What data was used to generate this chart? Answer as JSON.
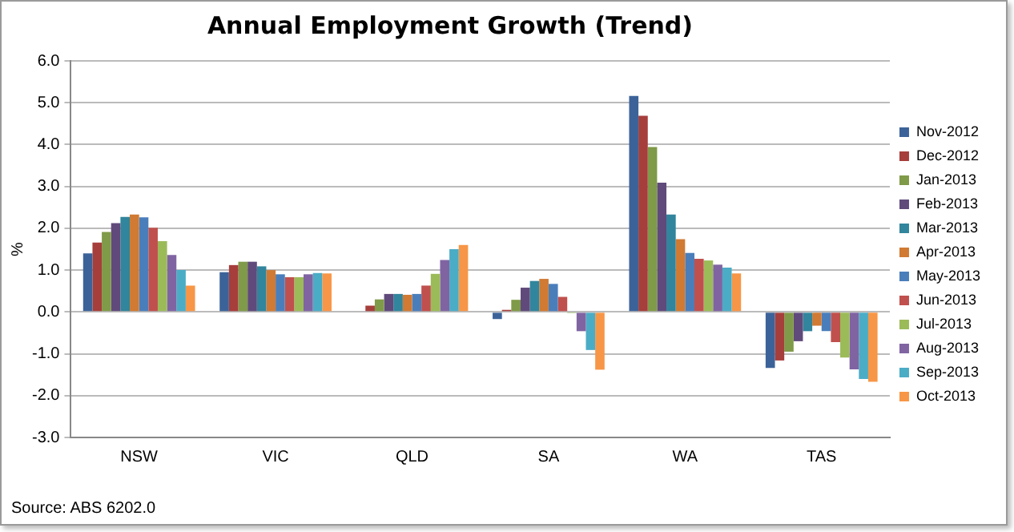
{
  "chart_data": {
    "type": "bar",
    "title": "Annual Employment Growth (Trend)",
    "ylabel": "%",
    "categories": [
      "NSW",
      "VIC",
      "QLD",
      "SA",
      "WA",
      "TAS"
    ],
    "series": [
      {
        "name": "Nov-2012",
        "color": "#3c6399",
        "values": [
          1.4,
          0.95,
          0.0,
          -0.17,
          5.16,
          -1.34
        ]
      },
      {
        "name": "Dec-2012",
        "color": "#a63e3b",
        "values": [
          1.66,
          1.12,
          0.15,
          0.05,
          4.69,
          -1.16
        ]
      },
      {
        "name": "Jan-2013",
        "color": "#7f9a48",
        "values": [
          1.91,
          1.2,
          0.3,
          0.29,
          3.94,
          -0.95
        ]
      },
      {
        "name": "Feb-2013",
        "color": "#604a7b",
        "values": [
          2.12,
          1.2,
          0.43,
          0.58,
          3.09,
          -0.7
        ]
      },
      {
        "name": "Mar-2013",
        "color": "#31859c",
        "values": [
          2.27,
          1.09,
          0.43,
          0.74,
          2.33,
          -0.46
        ]
      },
      {
        "name": "Apr-2013",
        "color": "#d07a33",
        "values": [
          2.33,
          1.0,
          0.41,
          0.79,
          1.74,
          -0.33
        ]
      },
      {
        "name": "May-2013",
        "color": "#4a7ebb",
        "values": [
          2.26,
          0.9,
          0.43,
          0.67,
          1.41,
          -0.46
        ]
      },
      {
        "name": "Jun-2013",
        "color": "#c0504d",
        "values": [
          2.01,
          0.83,
          0.63,
          0.36,
          1.27,
          -0.72
        ]
      },
      {
        "name": "Jul-2013",
        "color": "#9bbb59",
        "values": [
          1.69,
          0.83,
          0.91,
          -0.03,
          1.23,
          -1.09
        ]
      },
      {
        "name": "Aug-2013",
        "color": "#8064a2",
        "values": [
          1.36,
          0.9,
          1.24,
          -0.46,
          1.13,
          -1.37
        ]
      },
      {
        "name": "Sep-2013",
        "color": "#4bacc6",
        "values": [
          1.0,
          0.93,
          1.5,
          -0.91,
          1.06,
          -1.6
        ]
      },
      {
        "name": "Oct-2013",
        "color": "#f79646",
        "values": [
          0.63,
          0.92,
          1.6,
          -1.38,
          0.92,
          -1.67
        ]
      }
    ],
    "ylim": [
      -3,
      6
    ],
    "yticks": [
      {
        "value": -3,
        "label": "-3.0"
      },
      {
        "value": -2,
        "label": "-2.0"
      },
      {
        "value": -1,
        "label": "-1.0"
      },
      {
        "value": 0,
        "label": "0.0"
      },
      {
        "value": 1,
        "label": "1.0"
      },
      {
        "value": 2,
        "label": "2.0"
      },
      {
        "value": 3,
        "label": "3.0"
      },
      {
        "value": 4,
        "label": "4.0"
      },
      {
        "value": 5,
        "label": "5.0"
      },
      {
        "value": 6,
        "label": "6.0"
      }
    ],
    "grid": "y",
    "legend": "right",
    "annotations": [
      "Source: ABS 6202.0"
    ]
  }
}
